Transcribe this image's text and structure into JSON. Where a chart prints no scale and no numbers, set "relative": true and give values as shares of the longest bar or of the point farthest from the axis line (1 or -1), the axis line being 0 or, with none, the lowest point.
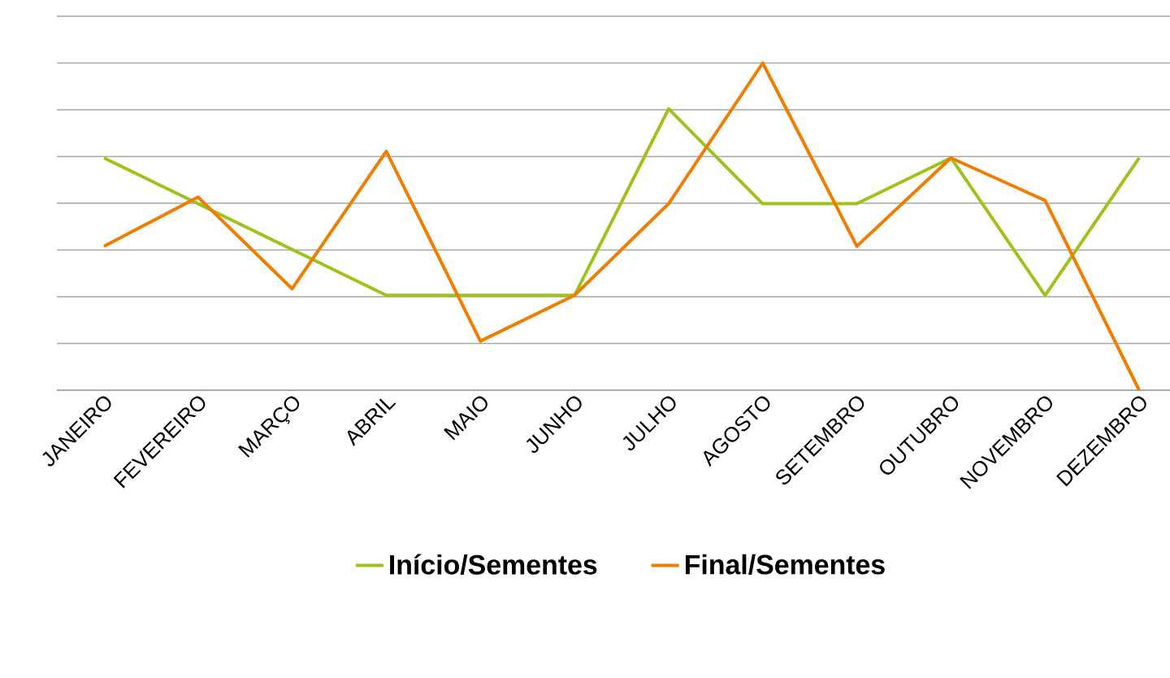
{
  "chart_data": {
    "type": "line",
    "relative": true,
    "grid": "y",
    "legend": "bottom",
    "categories": [
      "JANEIRO",
      "FEVEREIRO",
      "MARÇO",
      "ABRIL",
      "MAIO",
      "JUNHO",
      "JULHO",
      "AGOSTO",
      "SETEMBRO",
      "OUTUBRO",
      "NOVEMBRO",
      "DEZEMBRO"
    ],
    "series": [
      {
        "name": "Início/Sementes",
        "color": "#9dc31b",
        "values": [
          0.71,
          0.57,
          0.43,
          0.29,
          0.29,
          0.29,
          0.86,
          0.57,
          0.57,
          0.71,
          0.29,
          0.71
        ]
      },
      {
        "name": "Final/Sementes",
        "color": "#f07d00",
        "values": [
          0.44,
          0.59,
          0.31,
          0.73,
          0.15,
          0.29,
          0.57,
          1,
          0.44,
          0.71,
          0.58,
          0
        ]
      }
    ]
  }
}
